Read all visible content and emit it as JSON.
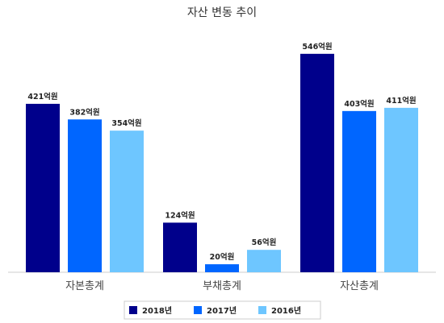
{
  "chart_data": {
    "type": "bar",
    "title": "자산 변동 추이",
    "categories": [
      "자본총계",
      "부채총계",
      "자산총계"
    ],
    "series": [
      {
        "name": "2018년",
        "color": "#00008b",
        "values": [
          421,
          124,
          546
        ],
        "labels": [
          "421억원",
          "124억원",
          "546억원"
        ]
      },
      {
        "name": "2017년",
        "color": "#0066ff",
        "values": [
          382,
          20,
          403
        ],
        "labels": [
          "382억원",
          "20억원",
          "403억원"
        ]
      },
      {
        "name": "2016년",
        "color": "#6ec6ff",
        "values": [
          354,
          56,
          411
        ],
        "labels": [
          "354억원",
          "56억원",
          "411억원"
        ]
      }
    ],
    "ylim": [
      0,
      600
    ],
    "grid": false,
    "legend_position": "bottom"
  }
}
